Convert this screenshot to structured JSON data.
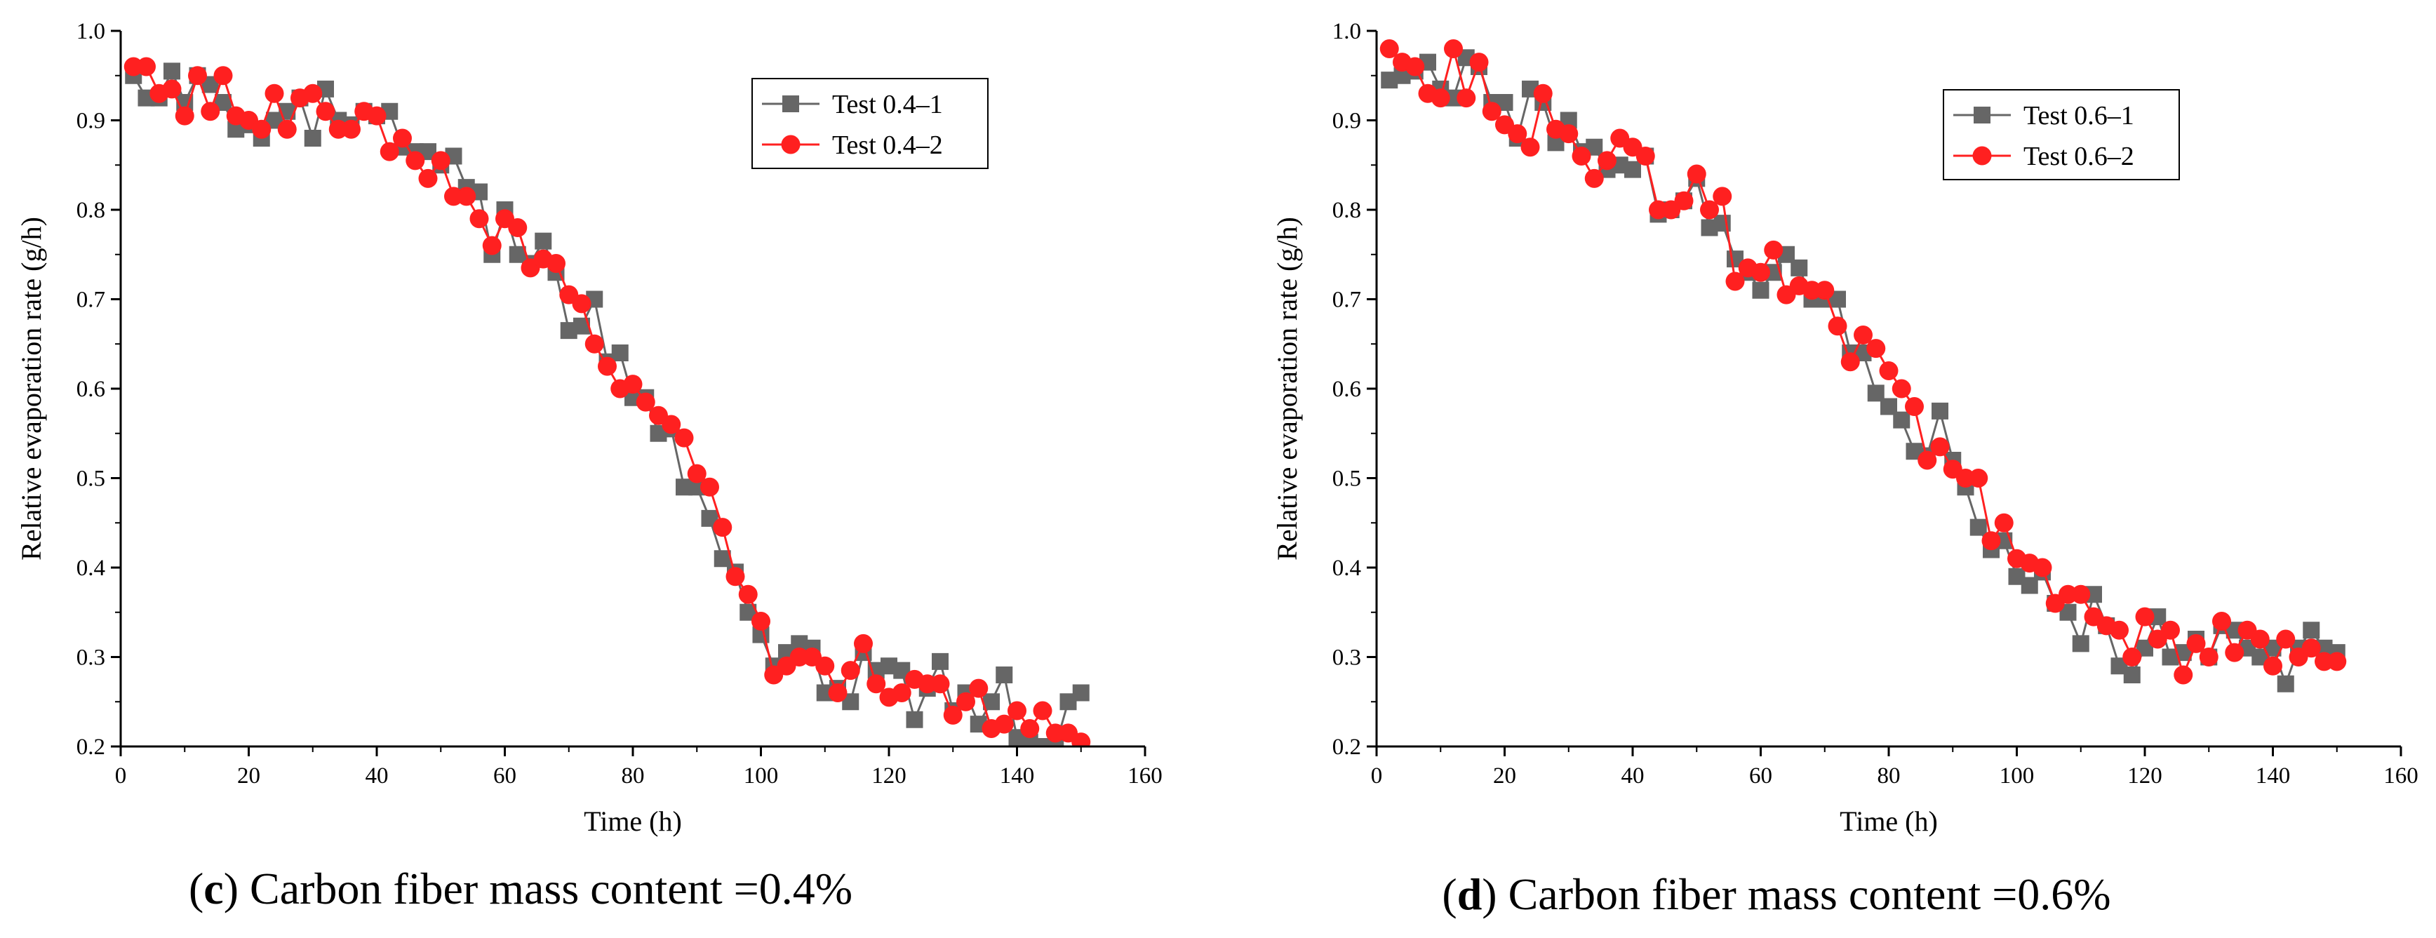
{
  "chart_data": [
    {
      "type": "line",
      "caption_letter": "c",
      "caption_text": "Carbon fiber mass content =0.4%",
      "xlabel": "Time (h)",
      "ylabel": "Relative evaporation rate (g/h)",
      "xlim": [
        0,
        160
      ],
      "ylim": [
        0.2,
        1.0
      ],
      "x_ticks": [
        0,
        20,
        40,
        60,
        80,
        100,
        120,
        140,
        160
      ],
      "y_ticks": [
        0.2,
        0.3,
        0.4,
        0.5,
        0.6,
        0.7,
        0.8,
        0.9,
        1.0
      ],
      "x_tick_labels": [
        "0",
        "20",
        "40",
        "60",
        "80",
        "100",
        "120",
        "140",
        "160"
      ],
      "y_tick_labels": [
        "0.2",
        "0.3",
        "0.4",
        "0.5",
        "0.6",
        "0.7",
        "0.8",
        "0.9",
        "1.0"
      ],
      "legend_position": "top-right",
      "series": [
        {
          "name": "Test 0.4–1",
          "color": "#666666",
          "marker": "square",
          "x": [
            2,
            4,
            6,
            8,
            10,
            12,
            14,
            16,
            18,
            20,
            22,
            24,
            26,
            28,
            30,
            32,
            34,
            36,
            38,
            40,
            42,
            44,
            46,
            48,
            50,
            52,
            54,
            56,
            58,
            60,
            62,
            64,
            66,
            68,
            70,
            72,
            74,
            76,
            78,
            80,
            82,
            84,
            86,
            88,
            90,
            92,
            94,
            96,
            98,
            100,
            102,
            104,
            106,
            108,
            110,
            112,
            114,
            116,
            118,
            120,
            122,
            124,
            126,
            128,
            130,
            132,
            134,
            136,
            138,
            140,
            142,
            144,
            146,
            148,
            150
          ],
          "y": [
            0.95,
            0.925,
            0.925,
            0.955,
            0.92,
            0.95,
            0.94,
            0.92,
            0.89,
            0.895,
            0.88,
            0.9,
            0.91,
            0.925,
            0.88,
            0.935,
            0.9,
            0.895,
            0.91,
            0.905,
            0.91,
            0.87,
            0.865,
            0.865,
            0.85,
            0.86,
            0.825,
            0.82,
            0.75,
            0.8,
            0.75,
            0.74,
            0.765,
            0.73,
            0.665,
            0.67,
            0.7,
            0.63,
            0.64,
            0.59,
            0.59,
            0.55,
            0.555,
            0.49,
            0.49,
            0.455,
            0.41,
            0.395,
            0.35,
            0.325,
            0.29,
            0.305,
            0.315,
            0.31,
            0.26,
            0.265,
            0.25,
            0.305,
            0.285,
            0.29,
            0.285,
            0.23,
            0.265,
            0.295,
            0.24,
            0.26,
            0.225,
            0.25,
            0.28,
            0.21,
            0.205,
            0.2,
            0.2,
            0.25,
            0.26
          ]
        },
        {
          "name": "Test 0.4–2",
          "color": "#ff2020",
          "marker": "circle",
          "x": [
            2,
            4,
            6,
            8,
            10,
            12,
            14,
            16,
            18,
            20,
            22,
            24,
            26,
            28,
            30,
            32,
            34,
            36,
            38,
            40,
            42,
            44,
            46,
            48,
            50,
            52,
            54,
            56,
            58,
            60,
            62,
            64,
            66,
            68,
            70,
            72,
            74,
            76,
            78,
            80,
            82,
            84,
            86,
            88,
            90,
            92,
            94,
            96,
            98,
            100,
            102,
            104,
            106,
            108,
            110,
            112,
            114,
            116,
            118,
            120,
            122,
            124,
            126,
            128,
            130,
            132,
            134,
            136,
            138,
            140,
            142,
            144,
            146,
            148,
            150
          ],
          "y": [
            0.96,
            0.96,
            0.93,
            0.935,
            0.905,
            0.95,
            0.91,
            0.95,
            0.905,
            0.9,
            0.89,
            0.93,
            0.89,
            0.925,
            0.93,
            0.91,
            0.89,
            0.89,
            0.91,
            0.905,
            0.865,
            0.88,
            0.855,
            0.835,
            0.855,
            0.815,
            0.815,
            0.79,
            0.76,
            0.79,
            0.78,
            0.735,
            0.745,
            0.74,
            0.705,
            0.695,
            0.65,
            0.625,
            0.6,
            0.605,
            0.585,
            0.57,
            0.56,
            0.545,
            0.505,
            0.49,
            0.445,
            0.39,
            0.37,
            0.34,
            0.28,
            0.29,
            0.3,
            0.3,
            0.29,
            0.26,
            0.285,
            0.315,
            0.27,
            0.255,
            0.26,
            0.275,
            0.27,
            0.27,
            0.235,
            0.25,
            0.265,
            0.22,
            0.225,
            0.24,
            0.22,
            0.24,
            0.215,
            0.215,
            0.205
          ]
        }
      ]
    },
    {
      "type": "line",
      "caption_letter": "d",
      "caption_text": "Carbon fiber mass content =0.6%",
      "xlabel": "Time (h)",
      "ylabel": "Relative evaporation rate (g/h)",
      "xlim": [
        0,
        160
      ],
      "ylim": [
        0.2,
        1.0
      ],
      "x_ticks": [
        0,
        20,
        40,
        60,
        80,
        100,
        120,
        140,
        160
      ],
      "y_ticks": [
        0.2,
        0.3,
        0.4,
        0.5,
        0.6,
        0.7,
        0.8,
        0.9,
        1.0
      ],
      "x_tick_labels": [
        "0",
        "20",
        "40",
        "60",
        "80",
        "100",
        "120",
        "140",
        "160"
      ],
      "y_tick_labels": [
        "0.2",
        "0.3",
        "0.4",
        "0.5",
        "0.6",
        "0.7",
        "0.8",
        "0.9",
        "1.0"
      ],
      "legend_position": "top-right",
      "series": [
        {
          "name": "Test 0.6–1",
          "color": "#666666",
          "marker": "square",
          "x": [
            2,
            4,
            6,
            8,
            10,
            12,
            14,
            16,
            18,
            20,
            22,
            24,
            26,
            28,
            30,
            32,
            34,
            36,
            38,
            40,
            42,
            44,
            46,
            48,
            50,
            52,
            54,
            56,
            58,
            60,
            62,
            64,
            66,
            68,
            70,
            72,
            74,
            76,
            78,
            80,
            82,
            84,
            86,
            88,
            90,
            92,
            94,
            96,
            98,
            100,
            102,
            104,
            106,
            108,
            110,
            112,
            114,
            116,
            118,
            120,
            122,
            124,
            126,
            128,
            130,
            132,
            134,
            136,
            138,
            140,
            142,
            144,
            146,
            148,
            150
          ],
          "y": [
            0.945,
            0.95,
            0.955,
            0.965,
            0.935,
            0.925,
            0.97,
            0.96,
            0.92,
            0.92,
            0.88,
            0.935,
            0.92,
            0.875,
            0.9,
            0.865,
            0.87,
            0.845,
            0.85,
            0.845,
            0.86,
            0.795,
            0.8,
            0.81,
            0.835,
            0.78,
            0.785,
            0.745,
            0.73,
            0.71,
            0.73,
            0.75,
            0.735,
            0.7,
            0.7,
            0.7,
            0.64,
            0.64,
            0.595,
            0.58,
            0.565,
            0.53,
            0.525,
            0.575,
            0.52,
            0.49,
            0.445,
            0.42,
            0.43,
            0.39,
            0.38,
            0.395,
            0.36,
            0.35,
            0.315,
            0.37,
            0.335,
            0.29,
            0.28,
            0.31,
            0.345,
            0.3,
            0.305,
            0.32,
            0.3,
            0.335,
            0.33,
            0.31,
            0.3,
            0.31,
            0.27,
            0.31,
            0.33,
            0.31,
            0.305
          ]
        },
        {
          "name": "Test 0.6–2",
          "color": "#ff2020",
          "marker": "circle",
          "x": [
            2,
            4,
            6,
            8,
            10,
            12,
            14,
            16,
            18,
            20,
            22,
            24,
            26,
            28,
            30,
            32,
            34,
            36,
            38,
            40,
            42,
            44,
            46,
            48,
            50,
            52,
            54,
            56,
            58,
            60,
            62,
            64,
            66,
            68,
            70,
            72,
            74,
            76,
            78,
            80,
            82,
            84,
            86,
            88,
            90,
            92,
            94,
            96,
            98,
            100,
            102,
            104,
            106,
            108,
            110,
            112,
            114,
            116,
            118,
            120,
            122,
            124,
            126,
            128,
            130,
            132,
            134,
            136,
            138,
            140,
            142,
            144,
            146,
            148,
            150
          ],
          "y": [
            0.98,
            0.965,
            0.96,
            0.93,
            0.925,
            0.98,
            0.925,
            0.965,
            0.91,
            0.895,
            0.885,
            0.87,
            0.93,
            0.89,
            0.885,
            0.86,
            0.835,
            0.855,
            0.88,
            0.87,
            0.86,
            0.8,
            0.8,
            0.81,
            0.84,
            0.8,
            0.815,
            0.72,
            0.735,
            0.73,
            0.755,
            0.705,
            0.715,
            0.71,
            0.71,
            0.67,
            0.63,
            0.66,
            0.645,
            0.62,
            0.6,
            0.58,
            0.52,
            0.535,
            0.51,
            0.5,
            0.5,
            0.43,
            0.45,
            0.41,
            0.405,
            0.4,
            0.36,
            0.37,
            0.37,
            0.345,
            0.335,
            0.33,
            0.3,
            0.345,
            0.32,
            0.33,
            0.28,
            0.315,
            0.3,
            0.34,
            0.305,
            0.33,
            0.32,
            0.29,
            0.32,
            0.3,
            0.31,
            0.295,
            0.295
          ]
        }
      ]
    }
  ]
}
